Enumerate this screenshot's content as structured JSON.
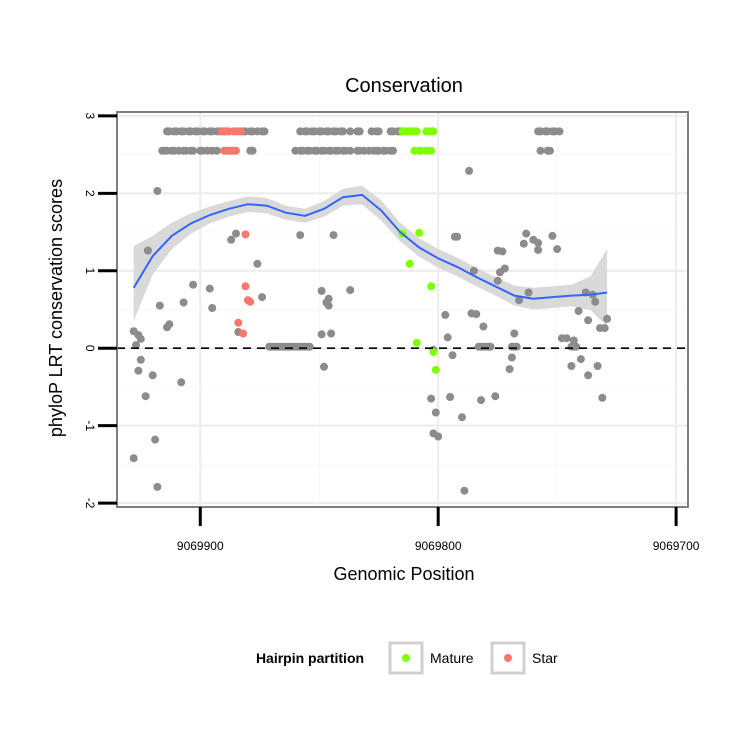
{
  "chart_data": {
    "type": "scatter",
    "title": "Conservation",
    "xlabel": "Genomic Position",
    "ylabel": "phyloP LRT conservation scores",
    "x_reversed": true,
    "xlim": [
      9069935,
      9069695
    ],
    "ylim": [
      -2.05,
      3.05
    ],
    "x_ticks": [
      9069900,
      9069800,
      9069700
    ],
    "x_tick_labels": [
      "9069900",
      "9069800",
      "9069700"
    ],
    "y_ticks": [
      -2,
      -1,
      0,
      1,
      2,
      3
    ],
    "y_tick_labels": [
      "-2",
      "-1",
      "0",
      "1",
      "2",
      "3"
    ],
    "grid": true,
    "reference_line": {
      "y": 0,
      "style": "dashed"
    },
    "legend": {
      "title": "Hairpin partition",
      "position": "bottom",
      "entries": [
        {
          "label": "Mature",
          "color": "#80ff00"
        },
        {
          "label": "Star",
          "color": "#f8766d"
        }
      ]
    },
    "colors": {
      "other": "#8c8c8c",
      "mature": "#80ff00",
      "star": "#f8766d",
      "smooth": "#3366ff",
      "ribbon": "#d9d9d9"
    },
    "series": [
      {
        "group": "other",
        "points": [
          [
            9069928,
            -1.42
          ],
          [
            9069928,
            0.22
          ],
          [
            9069927,
            0.04
          ],
          [
            9069926,
            0.17
          ],
          [
            9069926,
            -0.29
          ],
          [
            9069925,
            -0.15
          ],
          [
            9069925,
            0.12
          ],
          [
            9069923,
            -0.62
          ],
          [
            9069922,
            1.26
          ],
          [
            9069922,
            1.26
          ],
          [
            9069920,
            -0.35
          ],
          [
            9069919,
            -1.18
          ],
          [
            9069918,
            2.03
          ],
          [
            9069918,
            -1.79
          ],
          [
            9069917,
            0.55
          ],
          [
            9069914,
            0.27
          ],
          [
            9069913,
            0.31
          ],
          [
            9069908,
            -0.44
          ],
          [
            9069907,
            0.59
          ],
          [
            9069903,
            0.82
          ],
          [
            9069896,
            0.77
          ],
          [
            9069895,
            0.52
          ],
          [
            9069887,
            1.4
          ],
          [
            9069885,
            1.48
          ],
          [
            9069884,
            0.21
          ],
          [
            9069876,
            1.09
          ],
          [
            9069874,
            0.66
          ],
          [
            9069858,
            1.46
          ],
          [
            9069849,
            0.18
          ],
          [
            9069849,
            0.74
          ],
          [
            9069848,
            -0.24
          ],
          [
            9069847,
            0.59
          ],
          [
            9069846,
            0.55
          ],
          [
            9069846,
            0.64
          ],
          [
            9069845,
            0.19
          ],
          [
            9069844,
            1.46
          ],
          [
            9069837,
            0.75
          ],
          [
            9069803,
            -0.65
          ],
          [
            9069802,
            -0.02
          ],
          [
            9069802,
            -1.1
          ],
          [
            9069801,
            -0.83
          ],
          [
            9069800,
            -1.14
          ],
          [
            9069797,
            0.43
          ],
          [
            9069796,
            0.14
          ],
          [
            9069795,
            -0.63
          ],
          [
            9069794,
            -0.09
          ],
          [
            9069793,
            1.44
          ],
          [
            9069792,
            1.44
          ],
          [
            9069790,
            -0.89
          ],
          [
            9069789,
            -1.84
          ],
          [
            9069787,
            2.29
          ],
          [
            9069786,
            0.45
          ],
          [
            9069785,
            1.0
          ],
          [
            9069784,
            0.44
          ],
          [
            9069782,
            -0.67
          ],
          [
            9069781,
            0.28
          ],
          [
            9069776,
            -0.62
          ],
          [
            9069775,
            0.87
          ],
          [
            9069775,
            1.26
          ],
          [
            9069774,
            0.98
          ],
          [
            9069773,
            1.25
          ],
          [
            9069772,
            1.03
          ],
          [
            9069770,
            -0.27
          ],
          [
            9069769,
            -0.12
          ],
          [
            9069768,
            0.19
          ],
          [
            9069766,
            0.62
          ],
          [
            9069764,
            1.35
          ],
          [
            9069763,
            1.48
          ],
          [
            9069762,
            0.72
          ],
          [
            9069760,
            1.4
          ],
          [
            9069758,
            1.27
          ],
          [
            9069758,
            1.36
          ],
          [
            9069752,
            1.45
          ],
          [
            9069750,
            1.28
          ],
          [
            9069748,
            0.13
          ],
          [
            9069746,
            0.13
          ],
          [
            9069744,
            -0.23
          ],
          [
            9069743,
            0.1
          ],
          [
            9069741,
            0.48
          ],
          [
            9069740,
            -0.14
          ],
          [
            9069738,
            0.72
          ],
          [
            9069737,
            -0.35
          ],
          [
            9069737,
            0.36
          ],
          [
            9069735,
            0.69
          ],
          [
            9069734,
            0.6
          ],
          [
            9069733,
            -0.23
          ],
          [
            9069732,
            0.26
          ],
          [
            9069731,
            -0.64
          ],
          [
            9069730,
            0.26
          ],
          [
            9069729,
            0.38
          ],
          [
            9069916,
            2.55
          ],
          [
            9069915,
            2.55
          ],
          [
            9069914,
            2.55
          ],
          [
            9069912,
            2.55
          ],
          [
            9069911,
            2.55
          ],
          [
            9069909,
            2.55
          ],
          [
            9069907,
            2.55
          ],
          [
            9069906,
            2.55
          ],
          [
            9069904,
            2.55
          ],
          [
            9069903,
            2.55
          ],
          [
            9069900,
            2.55
          ],
          [
            9069899,
            2.55
          ],
          [
            9069897,
            2.55
          ],
          [
            9069895,
            2.55
          ],
          [
            9069893,
            2.55
          ],
          [
            9069879,
            2.55
          ],
          [
            9069878,
            2.55
          ],
          [
            9069860,
            2.55
          ],
          [
            9069858,
            2.55
          ],
          [
            9069857,
            2.55
          ],
          [
            9069855,
            2.55
          ],
          [
            9069854,
            2.55
          ],
          [
            9069852,
            2.55
          ],
          [
            9069851,
            2.55
          ],
          [
            9069849,
            2.55
          ],
          [
            9069848,
            2.55
          ],
          [
            9069846,
            2.55
          ],
          [
            9069845,
            2.55
          ],
          [
            9069843,
            2.55
          ],
          [
            9069842,
            2.55
          ],
          [
            9069840,
            2.55
          ],
          [
            9069839,
            2.55
          ],
          [
            9069837,
            2.55
          ],
          [
            9069834,
            2.55
          ],
          [
            9069833,
            2.55
          ],
          [
            9069831,
            2.55
          ],
          [
            9069829,
            2.55
          ],
          [
            9069827,
            2.55
          ],
          [
            9069826,
            2.55
          ],
          [
            9069825,
            2.55
          ],
          [
            9069823,
            2.55
          ],
          [
            9069822,
            2.55
          ],
          [
            9069820,
            2.55
          ],
          [
            9069819,
            2.55
          ],
          [
            9069757,
            2.55
          ],
          [
            9069754,
            2.55
          ],
          [
            9069753,
            2.55
          ],
          [
            9069914,
            2.8
          ],
          [
            9069913,
            2.8
          ],
          [
            9069911,
            2.8
          ],
          [
            9069910,
            2.8
          ],
          [
            9069908,
            2.8
          ],
          [
            9069907,
            2.8
          ],
          [
            9069905,
            2.8
          ],
          [
            9069904,
            2.8
          ],
          [
            9069902,
            2.8
          ],
          [
            9069901,
            2.8
          ],
          [
            9069899,
            2.8
          ],
          [
            9069898,
            2.8
          ],
          [
            9069896,
            2.8
          ],
          [
            9069895,
            2.8
          ],
          [
            9069893,
            2.8
          ],
          [
            9069892,
            2.8
          ],
          [
            9069890,
            2.8
          ],
          [
            9069882,
            2.8
          ],
          [
            9069881,
            2.8
          ],
          [
            9069879,
            2.8
          ],
          [
            9069878,
            2.8
          ],
          [
            9069876,
            2.8
          ],
          [
            9069874,
            2.8
          ],
          [
            9069873,
            2.8
          ],
          [
            9069858,
            2.8
          ],
          [
            9069856,
            2.8
          ],
          [
            9069855,
            2.8
          ],
          [
            9069853,
            2.8
          ],
          [
            9069852,
            2.8
          ],
          [
            9069850,
            2.8
          ],
          [
            9069849,
            2.8
          ],
          [
            9069847,
            2.8
          ],
          [
            9069846,
            2.8
          ],
          [
            9069844,
            2.8
          ],
          [
            9069843,
            2.8
          ],
          [
            9069841,
            2.8
          ],
          [
            9069840,
            2.8
          ],
          [
            9069837,
            2.8
          ],
          [
            9069834,
            2.8
          ],
          [
            9069833,
            2.8
          ],
          [
            9069828,
            2.8
          ],
          [
            9069826,
            2.8
          ],
          [
            9069825,
            2.8
          ],
          [
            9069820,
            2.8
          ],
          [
            9069819,
            2.8
          ],
          [
            9069817,
            2.8
          ],
          [
            9069816,
            2.8
          ],
          [
            9069758,
            2.8
          ],
          [
            9069757,
            2.8
          ],
          [
            9069755,
            2.8
          ],
          [
            9069754,
            2.8
          ],
          [
            9069752,
            2.8
          ],
          [
            9069751,
            2.8
          ],
          [
            9069749,
            2.8
          ],
          [
            9069871,
            0.02
          ],
          [
            9069870,
            0.02
          ],
          [
            9069869,
            0.02
          ],
          [
            9069868,
            0.02
          ],
          [
            9069867,
            0.02
          ],
          [
            9069866,
            0.02
          ],
          [
            9069865,
            0.02
          ],
          [
            9069864,
            0.02
          ],
          [
            9069863,
            0.02
          ],
          [
            9069862,
            0.02
          ],
          [
            9069861,
            0.02
          ],
          [
            9069860,
            0.02
          ],
          [
            9069859,
            0.02
          ],
          [
            9069858,
            0.02
          ],
          [
            9069857,
            0.02
          ],
          [
            9069856,
            0.02
          ],
          [
            9069855,
            0.02
          ],
          [
            9069854,
            0.02
          ],
          [
            9069783,
            0.02
          ],
          [
            9069782,
            0.02
          ],
          [
            9069781,
            0.02
          ],
          [
            9069780,
            0.02
          ],
          [
            9069779,
            0.02
          ],
          [
            9069778,
            0.02
          ],
          [
            9069769,
            0.02
          ],
          [
            9069768,
            0.02
          ],
          [
            9069767,
            0.02
          ],
          [
            9069744,
            0.02
          ],
          [
            9069743,
            0.02
          ],
          [
            9069742,
            0.02
          ]
        ]
      },
      {
        "group": "mature",
        "name": "Mature",
        "points": [
          [
            9069815,
            2.8
          ],
          [
            9069814,
            2.8
          ],
          [
            9069813,
            2.8
          ],
          [
            9069812,
            2.8
          ],
          [
            9069811,
            2.8
          ],
          [
            9069810,
            2.8
          ],
          [
            9069809,
            2.8
          ],
          [
            9069805,
            2.8
          ],
          [
            9069804,
            2.8
          ],
          [
            9069803,
            2.8
          ],
          [
            9069802,
            2.8
          ],
          [
            9069810,
            2.55
          ],
          [
            9069808,
            2.55
          ],
          [
            9069807,
            2.55
          ],
          [
            9069805,
            2.55
          ],
          [
            9069803,
            2.55
          ],
          [
            9069815,
            1.48
          ],
          [
            9069812,
            1.09
          ],
          [
            9069808,
            1.49
          ],
          [
            9069809,
            0.07
          ],
          [
            9069803,
            0.8
          ],
          [
            9069802,
            -0.05
          ],
          [
            9069801,
            -0.28
          ]
        ]
      },
      {
        "group": "star",
        "name": "Star",
        "points": [
          [
            9069891,
            2.8
          ],
          [
            9069890,
            2.8
          ],
          [
            9069889,
            2.8
          ],
          [
            9069888,
            2.8
          ],
          [
            9069886,
            2.8
          ],
          [
            9069885,
            2.8
          ],
          [
            9069884,
            2.8
          ],
          [
            9069883,
            2.8
          ],
          [
            9069890,
            2.55
          ],
          [
            9069889,
            2.55
          ],
          [
            9069888,
            2.55
          ],
          [
            9069887,
            2.55
          ],
          [
            9069886,
            2.55
          ],
          [
            9069885,
            2.55
          ],
          [
            9069881,
            1.47
          ],
          [
            9069881,
            0.8
          ],
          [
            9069880,
            0.62
          ],
          [
            9069879,
            0.6
          ],
          [
            9069884,
            0.33
          ],
          [
            9069882,
            0.19
          ]
        ]
      }
    ],
    "smooth_line": {
      "x": [
        9069928,
        9069920,
        9069912,
        9069904,
        9069896,
        9069888,
        9069880,
        9069872,
        9069864,
        9069856,
        9069848,
        9069840,
        9069832,
        9069824,
        9069816,
        9069808,
        9069800,
        9069792,
        9069784,
        9069776,
        9069768,
        9069760,
        9069752,
        9069744,
        9069736,
        9069729
      ],
      "y": [
        0.78,
        1.19,
        1.45,
        1.61,
        1.72,
        1.8,
        1.86,
        1.84,
        1.75,
        1.71,
        1.8,
        1.95,
        1.98,
        1.78,
        1.5,
        1.3,
        1.16,
        1.05,
        0.92,
        0.8,
        0.68,
        0.64,
        0.66,
        0.68,
        0.69,
        0.72
      ],
      "ci_lower": [
        0.35,
        0.95,
        1.28,
        1.48,
        1.61,
        1.7,
        1.76,
        1.74,
        1.66,
        1.62,
        1.7,
        1.84,
        1.86,
        1.65,
        1.38,
        1.18,
        1.04,
        0.93,
        0.8,
        0.68,
        0.55,
        0.5,
        0.52,
        0.54,
        0.49,
        0.28
      ],
      "ci_upper": [
        1.32,
        1.45,
        1.62,
        1.74,
        1.83,
        1.9,
        1.96,
        1.94,
        1.84,
        1.8,
        1.9,
        2.06,
        2.1,
        1.91,
        1.62,
        1.42,
        1.28,
        1.17,
        1.04,
        0.92,
        0.81,
        0.78,
        0.8,
        0.82,
        0.93,
        1.28
      ]
    }
  }
}
